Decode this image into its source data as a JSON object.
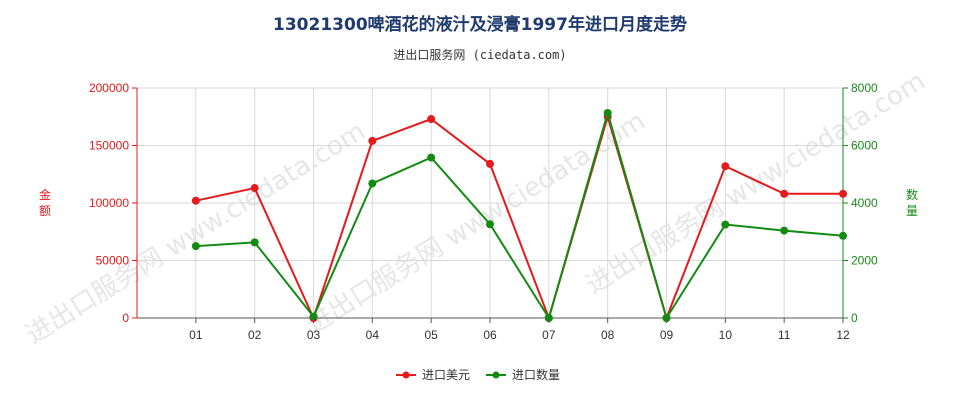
{
  "title": "13021300啤酒花的液汁及浸膏1997年进口月度走势",
  "subtitle": "进出口服务网 (ciedata.com)",
  "watermark": "进出口服务网 www.ciedata.com",
  "chart_data": {
    "type": "line",
    "categories": [
      "01",
      "02",
      "03",
      "04",
      "05",
      "06",
      "07",
      "08",
      "09",
      "10",
      "11",
      "12"
    ],
    "y_left": {
      "label": "金额",
      "ticks": [
        "0",
        "50000",
        "100000",
        "150000",
        "200000"
      ],
      "range": [
        0,
        200000
      ],
      "color": "#e41a1c"
    },
    "y_right": {
      "label": "数量",
      "ticks": [
        "0",
        "2000",
        "4000",
        "6000",
        "8000"
      ],
      "range": [
        0,
        8000
      ],
      "color": "#1a8a1a"
    },
    "series": [
      {
        "name": "进口美元",
        "axis": "left",
        "color": "#e41a1c",
        "values": [
          102000,
          113000,
          0,
          154000,
          173000,
          134000,
          0,
          175000,
          0,
          132000,
          108000,
          108000
        ]
      },
      {
        "name": "进口数量",
        "axis": "right",
        "color": "#138b13",
        "values": [
          2500,
          2630,
          50,
          4680,
          5580,
          3260,
          0,
          7130,
          0,
          3250,
          3040,
          2860
        ]
      }
    ],
    "grid": true,
    "legend_position": "bottom-center"
  }
}
